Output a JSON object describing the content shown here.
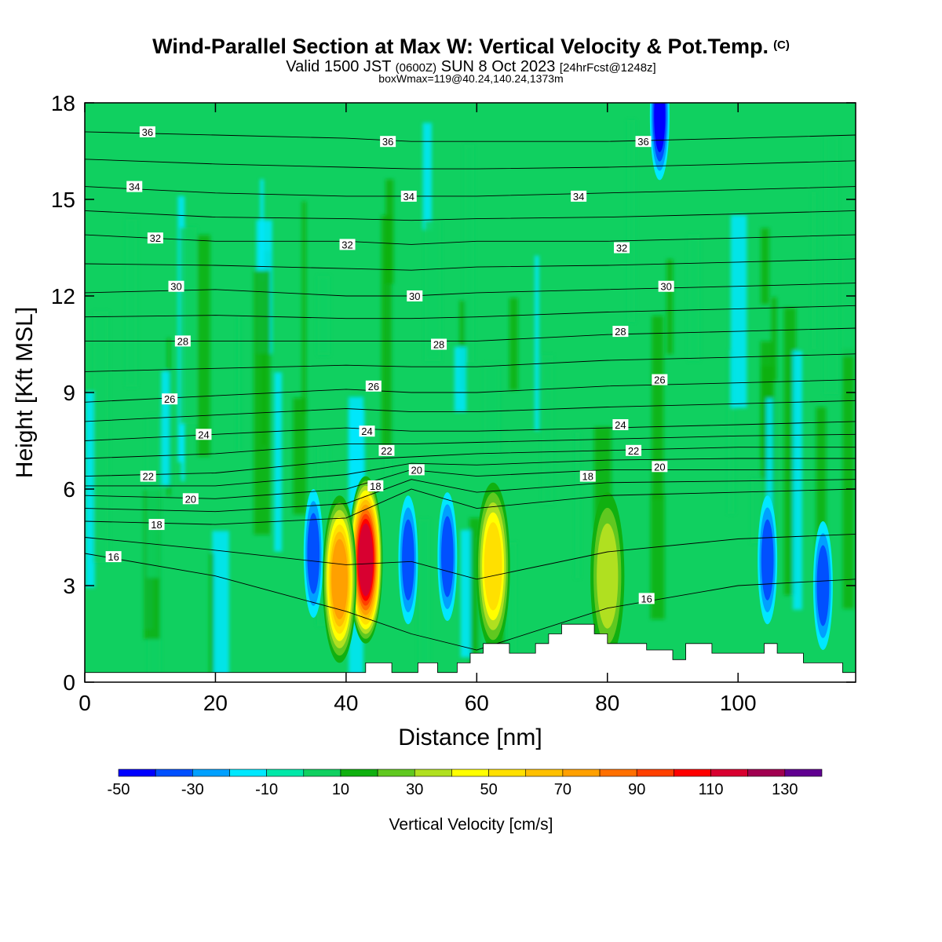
{
  "title": {
    "main": "Wind-Parallel Section at Max W: Vertical Velocity & Pot.Temp.",
    "copyright": "(C)",
    "valid_prefix": "Valid 1500 JST",
    "valid_utc": "(0600Z)",
    "valid_date": "SUN 8 Oct 2023",
    "forecast": "[24hrFcst@1248z]",
    "box_info": "boxWmax=119@40.24,140.24,1373m"
  },
  "chart_data": {
    "type": "heatmap",
    "xlabel": "Distance [nm]",
    "ylabel": "Height [Kft MSL]",
    "xlim": [
      0,
      118
    ],
    "ylim": [
      0,
      18
    ],
    "x_ticks": [
      0,
      20,
      40,
      60,
      80,
      100
    ],
    "y_ticks": [
      0,
      3,
      6,
      9,
      12,
      15,
      18
    ],
    "colorbar": {
      "label": "Vertical Velocity [cm/s]",
      "bounds": [
        -50,
        -40,
        -30,
        -20,
        -10,
        0,
        10,
        20,
        30,
        40,
        50,
        60,
        70,
        80,
        90,
        100,
        110,
        120,
        130,
        140
      ],
      "tick_labels": [
        -50,
        -30,
        -10,
        10,
        30,
        50,
        70,
        90,
        110,
        130
      ],
      "colors": [
        "#0000ff",
        "#0050ff",
        "#00a0ff",
        "#00e8ff",
        "#00e8a8",
        "#10d060",
        "#10b010",
        "#60c820",
        "#b0e020",
        "#ffff00",
        "#ffe000",
        "#ffc000",
        "#ffa000",
        "#ff7000",
        "#ff4000",
        "#ff0000",
        "#d80030",
        "#a00050",
        "#600090"
      ]
    },
    "background_value": 0,
    "updraft_cells": [
      {
        "x": 43,
        "y": 3.8,
        "wmax": 119
      },
      {
        "x": 39,
        "y": 3.2,
        "wmax": 75
      },
      {
        "x": 62.5,
        "y": 3.6,
        "wmax": 55
      },
      {
        "x": 80,
        "y": 3.3,
        "wmax": 35
      }
    ],
    "downdraft_cells": [
      {
        "x": 35,
        "y": 4.0,
        "wmin": -35
      },
      {
        "x": 49.5,
        "y": 3.8,
        "wmin": -30
      },
      {
        "x": 55.5,
        "y": 3.9,
        "wmin": -35
      },
      {
        "x": 104.5,
        "y": 3.8,
        "wmin": -35
      },
      {
        "x": 113,
        "y": 3.0,
        "wmin": -35
      },
      {
        "x": 88,
        "y": 17.6,
        "wmin": -40
      }
    ],
    "theta_contours": {
      "units": "C",
      "interval": 1,
      "labeled_levels": [
        16,
        18,
        20,
        22,
        24,
        26,
        28,
        30,
        32,
        34,
        36
      ],
      "x": [
        0,
        20,
        40,
        50,
        60,
        80,
        100,
        118
      ],
      "heights_kft": {
        "16": [
          4.0,
          3.3,
          2.2,
          1.5,
          1.0,
          2.3,
          3.0,
          3.2
        ],
        "18": [
          5.0,
          4.9,
          5.1,
          6.0,
          5.4,
          5.8,
          5.9,
          6.0
        ],
        "20": [
          5.8,
          5.7,
          6.0,
          6.6,
          6.4,
          6.6,
          6.6,
          6.6
        ],
        "22": [
          6.4,
          6.5,
          6.9,
          7.0,
          7.1,
          7.2,
          7.3,
          7.3
        ],
        "24": [
          7.5,
          7.7,
          7.9,
          7.8,
          7.8,
          7.9,
          8.0,
          8.1
        ],
        "26": [
          8.7,
          8.9,
          9.1,
          9.0,
          9.0,
          9.2,
          9.3,
          9.4
        ],
        "28": [
          10.6,
          10.6,
          10.6,
          10.6,
          10.6,
          10.8,
          10.9,
          11.0
        ],
        "30": [
          12.1,
          12.2,
          12.0,
          12.0,
          12.1,
          12.2,
          12.3,
          12.4
        ],
        "32": [
          13.9,
          13.7,
          13.7,
          13.6,
          13.7,
          13.7,
          13.8,
          13.9
        ],
        "34": [
          15.4,
          15.2,
          15.1,
          15.1,
          15.1,
          15.2,
          15.3,
          15.4
        ],
        "36": [
          17.1,
          17.0,
          16.9,
          16.8,
          16.8,
          16.8,
          16.9,
          17.0
        ]
      }
    },
    "contour_label_positions": [
      {
        "text": "36",
        "x": 9.6,
        "y": 17.1
      },
      {
        "text": "36",
        "x": 46.4,
        "y": 16.8
      },
      {
        "text": "36",
        "x": 85.5,
        "y": 16.8
      },
      {
        "text": "34",
        "x": 7.6,
        "y": 15.4
      },
      {
        "text": "34",
        "x": 49.6,
        "y": 15.1
      },
      {
        "text": "34",
        "x": 75.6,
        "y": 15.1
      },
      {
        "text": "32",
        "x": 10.8,
        "y": 13.8
      },
      {
        "text": "32",
        "x": 40.2,
        "y": 13.6
      },
      {
        "text": "32",
        "x": 82.2,
        "y": 13.5
      },
      {
        "text": "30",
        "x": 14.0,
        "y": 12.3
      },
      {
        "text": "30",
        "x": 50.5,
        "y": 12.0
      },
      {
        "text": "30",
        "x": 89.0,
        "y": 12.3
      },
      {
        "text": "28",
        "x": 15.0,
        "y": 10.6
      },
      {
        "text": "28",
        "x": 54.2,
        "y": 10.5
      },
      {
        "text": "28",
        "x": 82.0,
        "y": 10.9
      },
      {
        "text": "26",
        "x": 13.0,
        "y": 8.8
      },
      {
        "text": "26",
        "x": 44.2,
        "y": 9.2
      },
      {
        "text": "26",
        "x": 88.0,
        "y": 9.4
      },
      {
        "text": "24",
        "x": 18.2,
        "y": 7.7
      },
      {
        "text": "24",
        "x": 43.2,
        "y": 7.8
      },
      {
        "text": "24",
        "x": 82.0,
        "y": 8.0
      },
      {
        "text": "22",
        "x": 9.7,
        "y": 6.4
      },
      {
        "text": "22",
        "x": 46.2,
        "y": 7.2
      },
      {
        "text": "22",
        "x": 84.0,
        "y": 7.2
      },
      {
        "text": "20",
        "x": 16.2,
        "y": 5.7
      },
      {
        "text": "20",
        "x": 50.8,
        "y": 6.6
      },
      {
        "text": "20",
        "x": 88.0,
        "y": 6.7
      },
      {
        "text": "18",
        "x": 11.0,
        "y": 4.9
      },
      {
        "text": "18",
        "x": 44.5,
        "y": 6.1
      },
      {
        "text": "18",
        "x": 77.0,
        "y": 6.4
      },
      {
        "text": "16",
        "x": 4.4,
        "y": 3.9
      },
      {
        "text": "16",
        "x": 86.0,
        "y": 2.6
      }
    ],
    "terrain": {
      "x": [
        0,
        5,
        10,
        15,
        20,
        25,
        30,
        35,
        40,
        43,
        47,
        51,
        54,
        57,
        59,
        61,
        63,
        65,
        67,
        69,
        71,
        73,
        76,
        78,
        80,
        82,
        84,
        86,
        88,
        90,
        92,
        94,
        96,
        98,
        100,
        102,
        104,
        106,
        108,
        110,
        112,
        114,
        116,
        118
      ],
      "height_kft": [
        0.3,
        0.3,
        0.3,
        0.3,
        0.3,
        0.3,
        0.3,
        0.3,
        0.3,
        0.6,
        0.3,
        0.6,
        0.3,
        0.6,
        0.9,
        1.2,
        1.2,
        0.9,
        0.9,
        1.2,
        1.5,
        1.8,
        1.8,
        1.5,
        1.2,
        1.2,
        1.2,
        1.0,
        1.0,
        0.7,
        1.2,
        1.2,
        0.9,
        0.9,
        0.9,
        0.9,
        1.2,
        0.9,
        0.9,
        0.6,
        0.6,
        0.6,
        0.3,
        0.3
      ]
    }
  }
}
